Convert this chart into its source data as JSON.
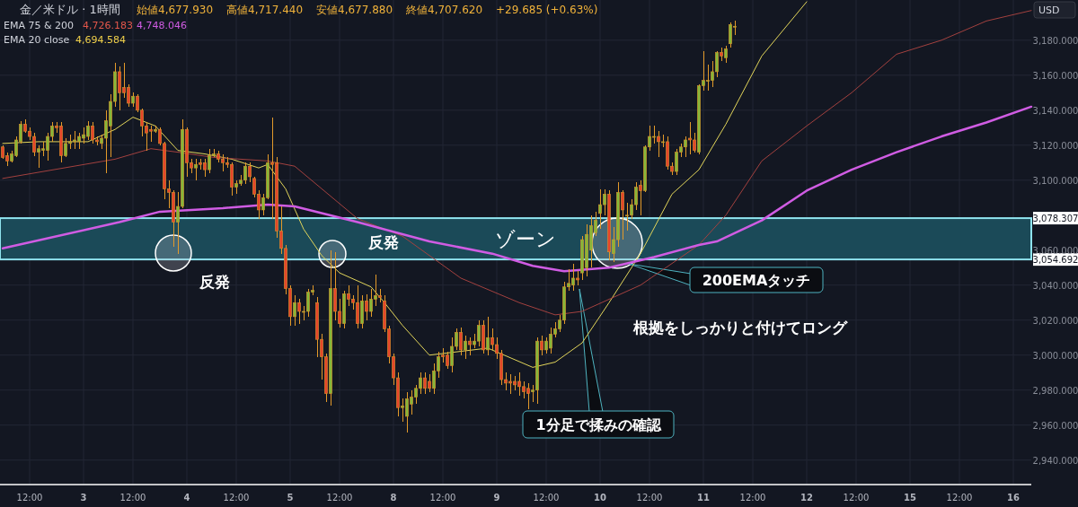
{
  "chart_data": {
    "type": "candlestick",
    "grid": true,
    "ylim": [
      2926,
      3203
    ],
    "categories": [
      null,
      null,
      null,
      null,
      null,
      null,
      "12:00",
      null,
      null,
      null,
      null,
      null,
      null,
      null,
      null,
      null,
      null,
      null,
      "3",
      null,
      null,
      null,
      null,
      null,
      null,
      null,
      null,
      null,
      null,
      "12:00",
      null,
      null,
      null,
      null,
      null,
      null,
      null,
      null,
      null,
      null,
      null,
      "4",
      null,
      null,
      null,
      null,
      null,
      null,
      null,
      null,
      null,
      null,
      "12:00",
      null,
      null,
      null,
      null,
      null,
      null,
      null,
      null,
      null,
      null,
      null,
      "5",
      null,
      null,
      null,
      null,
      null,
      null,
      null,
      null,
      null,
      null,
      "12:00",
      null,
      null,
      null,
      null,
      null,
      null,
      null,
      null,
      null,
      null,
      null,
      "8",
      null,
      null,
      null,
      null,
      null,
      null,
      null,
      null,
      null,
      null,
      "12:00",
      null,
      null,
      null,
      null,
      null,
      null,
      null,
      null,
      null,
      null,
      null,
      "9",
      null,
      null,
      null,
      null,
      null,
      null,
      null,
      null,
      null,
      null,
      "12:00",
      null,
      null,
      null,
      null,
      null,
      null,
      null,
      null,
      null,
      null,
      null,
      "10",
      null,
      null,
      null,
      null,
      null,
      null,
      null,
      null,
      null,
      null,
      "12:00",
      null,
      null,
      null,
      null,
      null,
      null,
      null,
      null,
      null,
      null,
      null,
      "11",
      null,
      null,
      null,
      null,
      null,
      null,
      null,
      null,
      null,
      null,
      "12:00",
      null,
      null,
      null,
      null,
      null,
      null,
      null,
      null,
      null,
      null,
      null,
      "12",
      null,
      null,
      null,
      null,
      null,
      null,
      null,
      null,
      null,
      null,
      "12:00",
      null,
      null,
      null,
      null,
      null,
      null,
      null,
      null,
      null,
      null,
      null,
      "15",
      null,
      null,
      null,
      null,
      null,
      null,
      null,
      null,
      null,
      null,
      "12:00",
      null,
      null,
      null,
      null,
      null,
      null,
      null,
      null,
      null,
      null,
      null,
      "16",
      null,
      null,
      null,
      null
    ],
    "yticks": [
      {
        "value": 2940,
        "label": "2,940.000"
      },
      {
        "value": 2960,
        "label": "2,960.000"
      },
      {
        "value": 2980,
        "label": "2,980.000"
      },
      {
        "value": 3000,
        "label": "3,000.000"
      },
      {
        "value": 3020,
        "label": "3,020.000"
      },
      {
        "value": 3040,
        "label": "3,040.000"
      },
      {
        "value": 3054.692,
        "label": "3,054.692"
      },
      {
        "value": 3060,
        "label": "3,060.000"
      },
      {
        "value": 3078.307,
        "label": "3,078.307"
      },
      {
        "value": 3100,
        "label": "3,100.000"
      },
      {
        "value": 3120,
        "label": "3,120.000"
      },
      {
        "value": 3140,
        "label": "3,140.000"
      },
      {
        "value": 3160,
        "label": "3,160.000"
      },
      {
        "value": 3180,
        "label": "3,180.000"
      }
    ],
    "ohlc": [
      [
        3119,
        3120,
        3112,
        3113
      ],
      [
        3114,
        3116,
        3108,
        3111
      ],
      [
        3111,
        3117,
        3110,
        3115
      ],
      [
        3114,
        3125,
        3113,
        3123
      ],
      [
        3122,
        3134,
        3121,
        3132
      ],
      [
        3132,
        3135,
        3127,
        3128
      ],
      [
        3128,
        3130,
        3123,
        3125
      ],
      [
        3125,
        3127,
        3114,
        3116
      ],
      [
        3116,
        3120,
        3107,
        3118
      ],
      [
        3117,
        3122,
        3114,
        3118
      ],
      [
        3117,
        3127,
        3111,
        3125
      ],
      [
        3125,
        3133,
        3122,
        3131
      ],
      [
        3131,
        3133,
        3127,
        3130
      ],
      [
        3131,
        3133,
        3110,
        3114
      ],
      [
        3114,
        3124,
        3113,
        3121
      ],
      [
        3121,
        3126,
        3118,
        3122
      ],
      [
        3122,
        3128,
        3118,
        3123
      ],
      [
        3122,
        3127,
        3118,
        3125
      ],
      [
        3124,
        3130,
        3121,
        3126
      ],
      [
        3125,
        3134,
        3123,
        3131
      ],
      [
        3131,
        3133,
        3121,
        3123
      ],
      [
        3123,
        3125,
        3120,
        3122
      ],
      [
        3121,
        3126,
        3118,
        3124
      ],
      [
        3124,
        3140,
        3104,
        3134
      ],
      [
        3131,
        3149,
        3113,
        3145
      ],
      [
        3145,
        3167,
        3142,
        3162
      ],
      [
        3162,
        3165,
        3140,
        3150
      ],
      [
        3153,
        3167,
        3147,
        3150
      ],
      [
        3153,
        3155,
        3142,
        3144
      ],
      [
        3144,
        3150,
        3142,
        3148
      ],
      [
        3148,
        3149,
        3139,
        3140
      ],
      [
        3140,
        3141,
        3125,
        3131
      ],
      [
        3131,
        3133,
        3117,
        3127
      ],
      [
        3129,
        3131,
        3122,
        3128
      ],
      [
        3128,
        3131,
        3127,
        3129
      ],
      [
        3129,
        3130,
        3120,
        3121
      ],
      [
        3121,
        3122,
        3089,
        3095
      ],
      [
        3095,
        3100,
        3084,
        3093
      ],
      [
        3093,
        3094,
        3062,
        3076
      ],
      [
        3076,
        3093,
        3058,
        3085
      ],
      [
        3085,
        3135,
        3084,
        3129
      ],
      [
        3129,
        3130,
        3102,
        3110
      ],
      [
        3110,
        3112,
        3104,
        3107
      ],
      [
        3107,
        3112,
        3100,
        3109
      ],
      [
        3110,
        3112,
        3106,
        3109
      ],
      [
        3110,
        3112,
        3102,
        3106
      ],
      [
        3106,
        3118,
        3104,
        3114
      ],
      [
        3114,
        3118,
        3113,
        3115
      ],
      [
        3115,
        3117,
        3110,
        3112
      ],
      [
        3112,
        3115,
        3105,
        3110
      ],
      [
        3110,
        3113,
        3107,
        3109
      ],
      [
        3109,
        3110,
        3091,
        3096
      ],
      [
        3096,
        3100,
        3092,
        3098
      ],
      [
        3098,
        3103,
        3097,
        3100
      ],
      [
        3100,
        3110,
        3098,
        3108
      ],
      [
        3108,
        3110,
        3099,
        3102
      ],
      [
        3101,
        3102,
        3090,
        3092
      ],
      [
        3092,
        3094,
        3078,
        3083
      ],
      [
        3083,
        3092,
        3080,
        3090
      ],
      [
        3090,
        3115,
        3089,
        3110
      ],
      [
        3110,
        3136,
        3078,
        3109
      ],
      [
        3110,
        3113,
        3067,
        3071
      ],
      [
        3071,
        3085,
        3058,
        3061
      ],
      [
        3061,
        3063,
        3035,
        3038
      ],
      [
        3038,
        3040,
        3017,
        3022
      ],
      [
        3022,
        3034,
        3017,
        3030
      ],
      [
        3030,
        3032,
        3018,
        3025
      ],
      [
        3025,
        3028,
        3020,
        3025
      ],
      [
        3025,
        3038,
        3022,
        3036
      ],
      [
        3036,
        3040,
        3034,
        3037
      ],
      [
        3030,
        3033,
        2999,
        3009
      ],
      [
        3009,
        3012,
        2986,
        2999
      ],
      [
        2999,
        3001,
        2973,
        2978
      ],
      [
        2978,
        3060,
        2971,
        3038
      ],
      [
        3038,
        3059,
        3020,
        3025
      ],
      [
        3025,
        3032,
        3016,
        3018
      ],
      [
        3018,
        3037,
        3015,
        3035
      ],
      [
        3035,
        3040,
        3028,
        3032
      ],
      [
        3032,
        3034,
        3026,
        3030
      ],
      [
        3030,
        3040,
        3015,
        3018
      ],
      [
        3018,
        3034,
        3015,
        3031
      ],
      [
        3031,
        3035,
        3020,
        3025
      ],
      [
        3025,
        3038,
        3022,
        3032
      ],
      [
        3032,
        3046,
        3028,
        3034
      ],
      [
        3034,
        3038,
        3030,
        3033
      ],
      [
        3031,
        3034,
        3013,
        3015
      ],
      [
        3015,
        3017,
        2995,
        2999
      ],
      [
        2999,
        3001,
        2983,
        2987
      ],
      [
        2987,
        2990,
        2965,
        2970
      ],
      [
        2970,
        2975,
        2962,
        2971
      ],
      [
        2965,
        2979,
        2956,
        2975
      ],
      [
        2972,
        2980,
        2966,
        2976
      ],
      [
        2976,
        2983,
        2972,
        2981
      ],
      [
        2981,
        2990,
        2978,
        2987
      ],
      [
        2987,
        2990,
        2978,
        2981
      ],
      [
        2985,
        2989,
        2979,
        2981
      ],
      [
        2981,
        2995,
        2978,
        2991
      ],
      [
        2991,
        3002,
        2987,
        2999
      ],
      [
        3000,
        3004,
        2996,
        2999
      ],
      [
        3000,
        3002,
        2992,
        2994
      ],
      [
        2994,
        3010,
        2990,
        3005
      ],
      [
        3005,
        3015,
        3003,
        3013
      ],
      [
        3013,
        3016,
        3000,
        3003
      ],
      [
        3003,
        3011,
        2998,
        3008
      ],
      [
        3008,
        3010,
        3000,
        3006
      ],
      [
        3006,
        3012,
        3004,
        3008
      ],
      [
        3008,
        3020,
        3005,
        3017
      ],
      [
        3017,
        3020,
        3001,
        3003
      ],
      [
        3003,
        3022,
        3000,
        3010
      ],
      [
        3010,
        3015,
        3003,
        3006
      ],
      [
        3006,
        3010,
        2998,
        3001
      ],
      [
        3001,
        3003,
        2983,
        2986
      ],
      [
        2986,
        2990,
        2980,
        2984
      ],
      [
        2985,
        2989,
        2978,
        2984
      ],
      [
        2985,
        2988,
        2980,
        2983
      ],
      [
        2985,
        2990,
        2977,
        2982
      ],
      [
        2982,
        2985,
        2975,
        2979
      ],
      [
        2981,
        2984,
        2969,
        2978
      ],
      [
        2979,
        2983,
        2973,
        2980
      ],
      [
        2980,
        3010,
        2972,
        3008
      ],
      [
        3008,
        3011,
        3000,
        3003
      ],
      [
        3003,
        3010,
        3001,
        3008
      ],
      [
        3004,
        3016,
        3001,
        3012
      ],
      [
        3012,
        3019,
        3010,
        3015
      ],
      [
        3015,
        3023,
        3013,
        3020
      ],
      [
        3020,
        3042,
        3018,
        3039
      ],
      [
        3039,
        3049,
        3037,
        3041
      ],
      [
        3040,
        3052,
        3037,
        3044
      ],
      [
        3044,
        3048,
        3040,
        3043
      ],
      [
        3047,
        3068,
        3043,
        3066
      ],
      [
        3050,
        3075,
        3045,
        3069
      ],
      [
        3060,
        3080,
        3050,
        3074
      ],
      [
        3070,
        3082,
        3068,
        3077
      ],
      [
        3081,
        3095,
        3072,
        3086
      ],
      [
        3086,
        3095,
        3080,
        3092
      ],
      [
        3092,
        3094,
        3054,
        3059
      ],
      [
        3058,
        3073,
        3053,
        3066
      ],
      [
        3066,
        3099,
        3062,
        3093
      ],
      [
        3093,
        3094,
        3066,
        3083
      ],
      [
        3080,
        3087,
        3071,
        3080
      ],
      [
        3080,
        3089,
        3078,
        3086
      ],
      [
        3086,
        3099,
        3083,
        3096
      ],
      [
        3097,
        3100,
        3080,
        3094
      ],
      [
        3094,
        3120,
        3093,
        3119
      ],
      [
        3119,
        3131,
        3117,
        3125
      ],
      [
        3125,
        3131,
        3121,
        3125
      ],
      [
        3125,
        3128,
        3113,
        3122
      ],
      [
        3122,
        3126,
        3119,
        3122
      ],
      [
        3122,
        3125,
        3106,
        3108
      ],
      [
        3108,
        3110,
        3103,
        3105
      ],
      [
        3105,
        3118,
        3103,
        3116
      ],
      [
        3116,
        3121,
        3113,
        3119
      ],
      [
        3119,
        3125,
        3113,
        3123
      ],
      [
        3124,
        3133,
        3115,
        3123
      ],
      [
        3123,
        3127,
        3116,
        3117
      ],
      [
        3116,
        3155,
        3115,
        3154
      ],
      [
        3154,
        3174,
        3151,
        3157
      ],
      [
        3157,
        3166,
        3151,
        3157
      ],
      [
        3157,
        3168,
        3153,
        3162
      ],
      [
        3162,
        3174,
        3159,
        3173
      ],
      [
        3173,
        3176,
        3168,
        3171
      ],
      [
        3170,
        3177,
        3167,
        3175
      ],
      [
        3178,
        3190,
        3176,
        3189
      ],
      [
        3188,
        3191,
        3183,
        3188
      ],
      null,
      null,
      null,
      null,
      null,
      null,
      null,
      null,
      null,
      null,
      null,
      null,
      null,
      null,
      null,
      null,
      null,
      null,
      null,
      null,
      null,
      null,
      null,
      null,
      null,
      null,
      null,
      null,
      null,
      null,
      null,
      null,
      null,
      null,
      null,
      null,
      null,
      null,
      null,
      null,
      null,
      null,
      null,
      null,
      null,
      null,
      null,
      null,
      null,
      null,
      null,
      null,
      null,
      null,
      null,
      null,
      null,
      null,
      null,
      null,
      null,
      null,
      null,
      null,
      null,
      null
    ],
    "series": [
      {
        "type": "line",
        "color": "#e2d55a",
        "values": [
          3121,
          null,
          null,
          null,
          null,
          null,
          null,
          null,
          3122,
          null,
          null,
          null,
          null,
          null,
          null,
          null,
          null,
          null,
          null,
          3122,
          null,
          null,
          null,
          null,
          null,
          3129,
          null,
          null,
          null,
          3136,
          null,
          null,
          null,
          null,
          3131,
          null,
          null,
          null,
          null,
          3117,
          null,
          null,
          null,
          null,
          null,
          3115,
          null,
          null,
          null,
          null,
          null,
          3112,
          null,
          null,
          null,
          null,
          null,
          3107,
          null,
          3109,
          null,
          null,
          null,
          3095,
          null,
          null,
          null,
          3072,
          null,
          null,
          null,
          3057,
          null,
          null,
          null,
          3047,
          null,
          null,
          null,
          null,
          null,
          null,
          3039,
          null,
          null,
          3030,
          null,
          null,
          null,
          3017,
          null,
          null,
          null,
          null,
          null,
          3000,
          null,
          null,
          null,
          null,
          null,
          null,
          null,
          null,
          null,
          null,
          null,
          null,
          3004,
          null,
          null,
          null,
          null,
          null,
          null,
          null,
          null,
          null,
          2993,
          null,
          null,
          null,
          null,
          2996,
          null,
          null,
          null,
          null,
          null,
          3007,
          null,
          null,
          null,
          null,
          null,
          3030,
          null,
          null,
          null,
          null,
          null,
          null,
          3058,
          null,
          null,
          null,
          null,
          null,
          null,
          3092,
          null,
          null,
          null,
          null,
          null,
          3106,
          null,
          null,
          null,
          null,
          null,
          3132,
          null,
          null,
          null,
          null,
          null,
          null,
          null,
          3171,
          null,
          null,
          null,
          null,
          null,
          null,
          null,
          null,
          null,
          3202,
          null,
          null,
          null,
          null,
          null,
          null,
          null,
          null,
          null,
          null,
          null,
          null,
          null,
          null,
          null,
          null,
          null,
          null,
          null,
          null,
          null,
          null,
          null,
          null,
          null,
          null,
          null,
          null,
          null,
          null,
          null,
          null,
          null,
          null,
          null,
          null,
          null,
          null,
          null,
          null,
          null,
          null,
          null,
          null,
          null,
          null,
          null,
          null,
          null,
          null
        ]
      },
      {
        "type": "line",
        "color": "#a3413f",
        "values": [
          3101,
          null,
          null,
          null,
          null,
          null,
          null,
          null,
          null,
          null,
          null,
          null,
          null,
          null,
          null,
          null,
          null,
          null,
          null,
          null,
          null,
          null,
          null,
          null,
          null,
          3112,
          null,
          null,
          null,
          null,
          null,
          null,
          null,
          3118,
          null,
          null,
          null,
          null,
          null,
          3116,
          null,
          null,
          null,
          null,
          null,
          null,
          null,
          3113,
          null,
          null,
          null,
          null,
          null,
          null,
          null,
          null,
          null,
          null,
          null,
          3111,
          null,
          null,
          null,
          null,
          null,
          3108,
          null,
          null,
          null,
          null,
          null,
          null,
          null,
          null,
          null,
          null,
          null,
          null,
          null,
          3078,
          null,
          null,
          null,
          null,
          null,
          null,
          null,
          null,
          null,
          3068,
          null,
          null,
          null,
          null,
          null,
          null,
          null,
          null,
          null,
          null,
          null,
          null,
          3044,
          null,
          null,
          null,
          null,
          null,
          null,
          null,
          null,
          null,
          null,
          null,
          null,
          3030,
          null,
          null,
          null,
          null,
          null,
          null,
          null,
          3023,
          null,
          null,
          null,
          null,
          null,
          3025,
          null,
          null,
          null,
          null,
          null,
          null,
          null,
          null,
          null,
          null,
          null,
          null,
          3040,
          null,
          null,
          null,
          null,
          null,
          null,
          null,
          null,
          null,
          null,
          null,
          null,
          3063,
          null,
          null,
          null,
          null,
          null,
          3080,
          null,
          null,
          null,
          null,
          null,
          null,
          null,
          3111,
          null,
          null,
          null,
          null,
          null,
          null,
          null,
          null,
          null,
          3131,
          null,
          null,
          null,
          null,
          null,
          null,
          null,
          null,
          null,
          3150,
          null,
          null,
          null,
          null,
          null,
          null,
          null,
          null,
          null,
          3172,
          null,
          null,
          null,
          null,
          null,
          null,
          null,
          null,
          null,
          3180,
          null,
          null,
          null,
          null,
          null,
          null,
          null,
          null,
          null,
          3191,
          null,
          null,
          null,
          null,
          null,
          null,
          null,
          null,
          null,
          3197
        ]
      },
      {
        "type": "line",
        "color": "#d05ce3",
        "values": [
          3061,
          null,
          null,
          null,
          null,
          null,
          null,
          null,
          null,
          null,
          null,
          null,
          null,
          null,
          null,
          null,
          null,
          null,
          null,
          null,
          null,
          null,
          null,
          null,
          null,
          null,
          3076,
          null,
          null,
          null,
          null,
          null,
          null,
          null,
          null,
          3082,
          null,
          null,
          null,
          null,
          null,
          null,
          null,
          null,
          null,
          null,
          null,
          null,
          null,
          3084,
          null,
          null,
          null,
          null,
          null,
          null,
          null,
          null,
          null,
          3086,
          null,
          null,
          null,
          null,
          null,
          3085,
          null,
          null,
          null,
          null,
          null,
          null,
          null,
          null,
          null,
          null,
          null,
          null,
          null,
          3076,
          null,
          null,
          null,
          null,
          null,
          null,
          null,
          null,
          null,
          null,
          null,
          null,
          null,
          null,
          null,
          3065,
          null,
          null,
          null,
          null,
          null,
          null,
          null,
          null,
          null,
          null,
          null,
          null,
          null,
          3058,
          null,
          null,
          null,
          null,
          null,
          null,
          null,
          null,
          3051,
          null,
          null,
          null,
          null,
          null,
          null,
          3048,
          null,
          null,
          null,
          null,
          null,
          null,
          null,
          null,
          null,
          3050,
          null,
          null,
          null,
          null,
          null,
          null,
          null,
          null,
          null,
          3056,
          null,
          null,
          null,
          null,
          null,
          null,
          null,
          null,
          null,
          3063,
          null,
          null,
          null,
          3065,
          null,
          null,
          null,
          null,
          null,
          null,
          null,
          null,
          null,
          3077,
          null,
          null,
          null,
          null,
          null,
          null,
          null,
          null,
          null,
          3094,
          null,
          null,
          null,
          null,
          null,
          null,
          null,
          null,
          null,
          3106,
          null,
          null,
          null,
          null,
          null,
          null,
          null,
          null,
          null,
          3116,
          null,
          null,
          null,
          null,
          null,
          null,
          null,
          null,
          null,
          3125,
          null,
          null,
          null,
          null,
          null,
          null,
          null,
          null,
          null,
          3133,
          null,
          null,
          null,
          null,
          null,
          null,
          null,
          null,
          null,
          3142
        ]
      }
    ],
    "bands": [
      {
        "axis": "y",
        "from": 3054.692,
        "to": 3078.307,
        "label": "ゾーン",
        "color": "#1b4a58"
      }
    ],
    "annotations": [
      "金／米ドル · 1時間",
      "始値4,677.930",
      "高値4,717.440",
      "安値4,677.880",
      "終値4,707.620",
      "+29.685 (+0.63%)",
      "EMA 75 & 200",
      "4,726.183",
      "4,748.046",
      "EMA 20 close",
      "4,694.584",
      "USD",
      "反発",
      "反発",
      "200EMAタッチ",
      "1分足で揉みの確認",
      "根拠をしっかりと付けてロング"
    ]
  }
}
